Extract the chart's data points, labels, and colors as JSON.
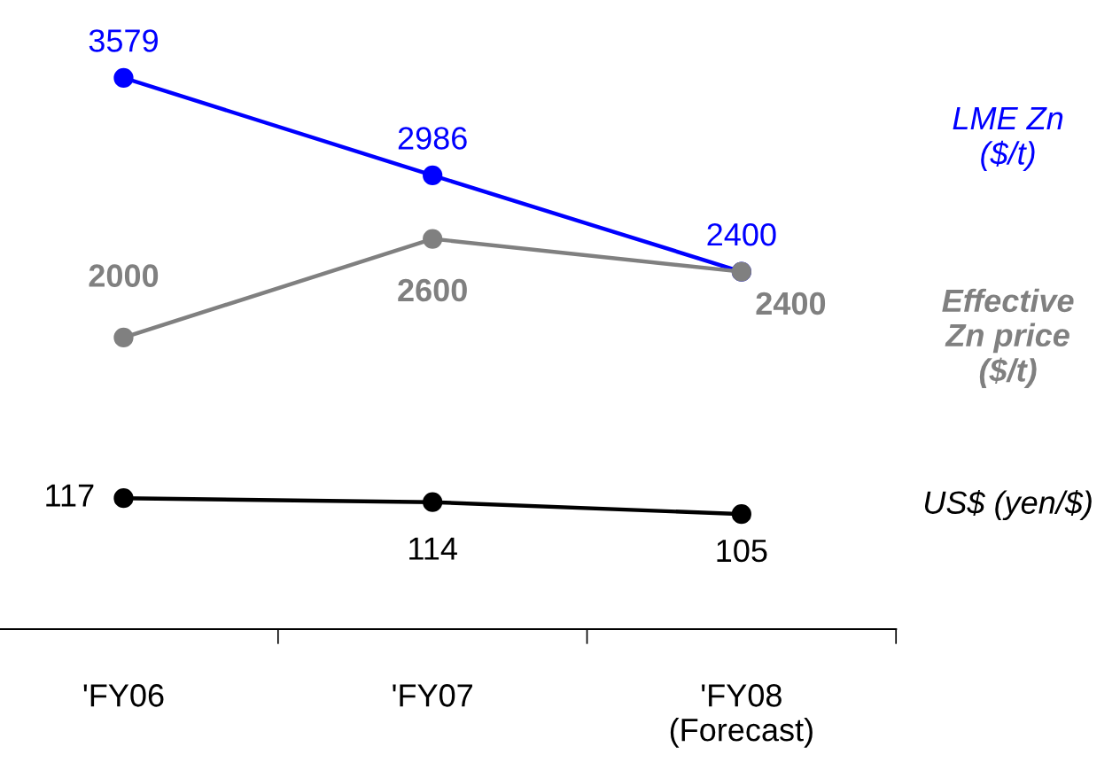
{
  "chart_data": [
    {
      "type": "line",
      "categories": [
        null,
        null,
        null
      ],
      "series": [
        {
          "name": "LME Zn\n($/t)",
          "color": "#0000ff",
          "values": [
            3579,
            2986,
            2400
          ]
        },
        {
          "name": "Effective\nZn price\n($/t)",
          "color": "#808080",
          "values": [
            2000,
            2600,
            2400
          ]
        }
      ],
      "marker": "circle",
      "data_labels": true,
      "tick_labels": false,
      "grid": false,
      "legend": false
    },
    {
      "type": "line",
      "categories": [
        "'FY06",
        "'FY07",
        "'FY08\n(Forecast)"
      ],
      "series": [
        {
          "name": "US$ (yen/$)",
          "color": "#000000",
          "values": [
            117,
            114,
            105
          ]
        }
      ],
      "marker": "circle",
      "data_labels": true,
      "tick_labels": "x",
      "grid": false,
      "legend": false
    }
  ]
}
